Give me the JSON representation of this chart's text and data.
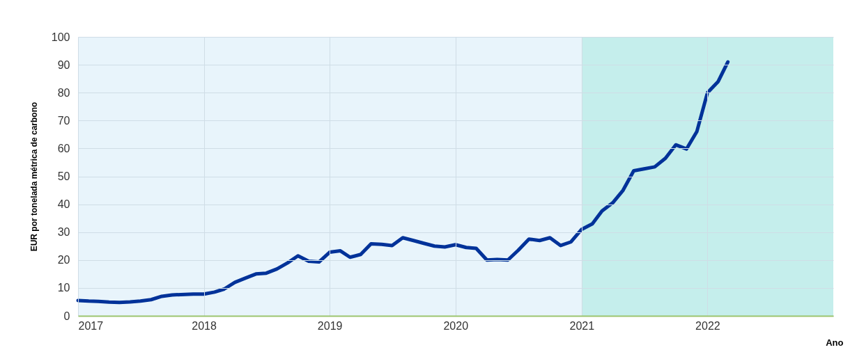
{
  "chart_data": {
    "type": "line",
    "xlabel": "Ano",
    "ylabel": "EUR por tonelada métrica de carbono",
    "x": [
      "2017-01",
      "2017-02",
      "2017-03",
      "2017-04",
      "2017-05",
      "2017-06",
      "2017-07",
      "2017-08",
      "2017-09",
      "2017-10",
      "2017-12",
      "2018-01",
      "2018-02",
      "2018-03",
      "2018-04",
      "2018-05",
      "2018-06",
      "2018-07",
      "2018-08",
      "2018-09",
      "2018-10",
      "2018-11",
      "2018-12",
      "2019-01",
      "2019-02",
      "2019-03",
      "2019-04",
      "2019-05",
      "2019-06",
      "2019-07",
      "2019-08",
      "2019-09",
      "2019-10",
      "2019-11",
      "2019-12",
      "2020-01",
      "2020-02",
      "2020-03",
      "2020-04",
      "2020-05",
      "2020-06",
      "2020-07",
      "2020-08",
      "2020-09",
      "2020-10",
      "2020-11",
      "2020-12",
      "2021-01",
      "2021-02",
      "2021-03",
      "2021-04",
      "2021-05",
      "2021-06",
      "2021-07",
      "2021-08",
      "2021-09",
      "2021-10",
      "2021-11",
      "2021-12",
      "2022-01",
      "2022-02",
      "2022-03"
    ],
    "series": [
      {
        "color": "#003299",
        "values": [
          5.5,
          5.3,
          5.2,
          4.9,
          4.8,
          5.0,
          5.3,
          5.8,
          7.0,
          7.5,
          7.8,
          7.8,
          8.5,
          9.6,
          12,
          13.5,
          15,
          15.3,
          16.8,
          19,
          21.5,
          19.6,
          19.3,
          22.8,
          23.3,
          21,
          22,
          25.8,
          25.6,
          25.2,
          28,
          27,
          26,
          25,
          24.7,
          25.5,
          24.5,
          24.2,
          20,
          20.2,
          20,
          23.5,
          27.5,
          27,
          28,
          25.2,
          26.5,
          31,
          33,
          37.6,
          40.5,
          45,
          52,
          52.7,
          53.4,
          56.5,
          61.3,
          59.8,
          66,
          80,
          84,
          91
        ]
      }
    ],
    "xlim": [
      "2017-01-01",
      "2023-01-01"
    ],
    "xticks": [
      "2017",
      "2018",
      "2019",
      "2020",
      "2021",
      "2022"
    ],
    "ylim": [
      0,
      100
    ],
    "yticks": [
      0,
      10,
      20,
      30,
      40,
      50,
      60,
      70,
      80,
      90,
      100
    ],
    "bands": [
      {
        "axis": "x",
        "from": "2017-01-01",
        "to": "2021-01-01",
        "color": "#e8f4fb"
      },
      {
        "axis": "x",
        "from": "2021-01-01",
        "to": "2023-01-01",
        "color": "#c5eeec"
      }
    ],
    "grid": true,
    "legend": false,
    "marker": "none",
    "line_style": "solid"
  }
}
